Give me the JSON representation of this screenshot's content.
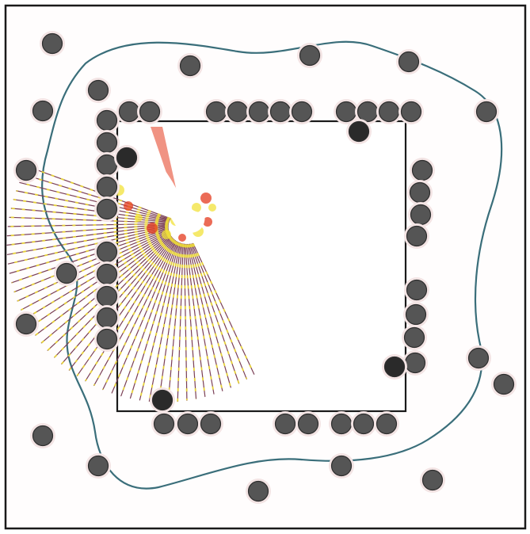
{
  "colors": {
    "background": "#fffdfd",
    "frame": "#1a1a1a",
    "boundary_curve": "#3a6e7a",
    "particle": "#555555",
    "particle_dark": "#2a2a2a",
    "ray": "#7a3f55",
    "ray_highlight_yellow": "#f2e23a",
    "ray_highlight_red": "#e43a1e"
  },
  "icons": {
    "particle": "filled-circle-icon",
    "dark_particle": "filled-dark-circle-icon"
  }
}
